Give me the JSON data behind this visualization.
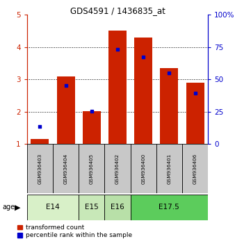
{
  "title": "GDS4591 / 1436835_at",
  "samples": [
    "GSM936403",
    "GSM936404",
    "GSM936405",
    "GSM936402",
    "GSM936400",
    "GSM936401",
    "GSM936406"
  ],
  "red_values": [
    1.15,
    3.1,
    2.02,
    4.5,
    4.3,
    3.35,
    2.9
  ],
  "blue_values": [
    1.55,
    2.82,
    2.02,
    3.92,
    3.7,
    3.2,
    2.57
  ],
  "ylim_left": [
    1,
    5
  ],
  "ylim_right": [
    0,
    100
  ],
  "yticks_left": [
    1,
    2,
    3,
    4,
    5
  ],
  "yticks_right": [
    0,
    25,
    50,
    75,
    100
  ],
  "age_groups": [
    {
      "label": "E14",
      "samples": [
        "GSM936403",
        "GSM936404"
      ],
      "color": "#d8f0c8"
    },
    {
      "label": "E15",
      "samples": [
        "GSM936405"
      ],
      "color": "#c8e8b8"
    },
    {
      "label": "E16",
      "samples": [
        "GSM936402"
      ],
      "color": "#b8e0a8"
    },
    {
      "label": "E17.5",
      "samples": [
        "GSM936400",
        "GSM936401",
        "GSM936406"
      ],
      "color": "#5ccc5c"
    }
  ],
  "red_color": "#cc2200",
  "blue_color": "#0000cc",
  "bar_width": 0.7,
  "sample_bg_color": "#c8c8c8",
  "legend_red_label": "transformed count",
  "legend_blue_label": "percentile rank within the sample",
  "age_label": "age",
  "right_axis_color": "#0000cc",
  "left_axis_color": "#cc2200",
  "grid_ticks": [
    2,
    3,
    4
  ]
}
